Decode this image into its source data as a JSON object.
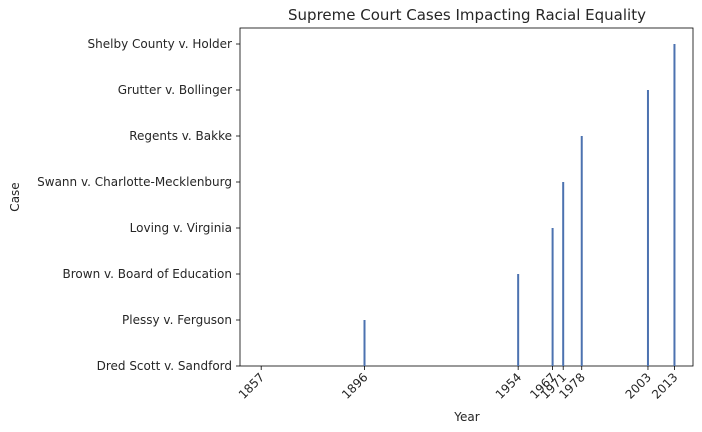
{
  "chart_data": {
    "type": "bar",
    "orientation": "vertical-stems",
    "title": "Supreme Court Cases Impacting Racial Equality",
    "xlabel": "Year",
    "ylabel": "Case",
    "categories": [
      "Dred Scott v. Sandford",
      "Plessy v. Ferguson",
      "Brown v. Board of Education",
      "Loving v. Virginia",
      "Swann v. Charlotte-Mecklenburg",
      "Regents v. Bakke",
      "Grutter v. Bollinger",
      "Shelby County v. Holder"
    ],
    "x": [
      1857,
      1896,
      1954,
      1967,
      1971,
      1978,
      2003,
      2013
    ],
    "xticks": [
      "1857",
      "1896",
      "1954",
      "1967",
      "1971",
      "1978",
      "2003",
      "2013"
    ],
    "xlim": [
      1849,
      2020
    ],
    "grid": false,
    "bar_color": "#4c72b0"
  }
}
